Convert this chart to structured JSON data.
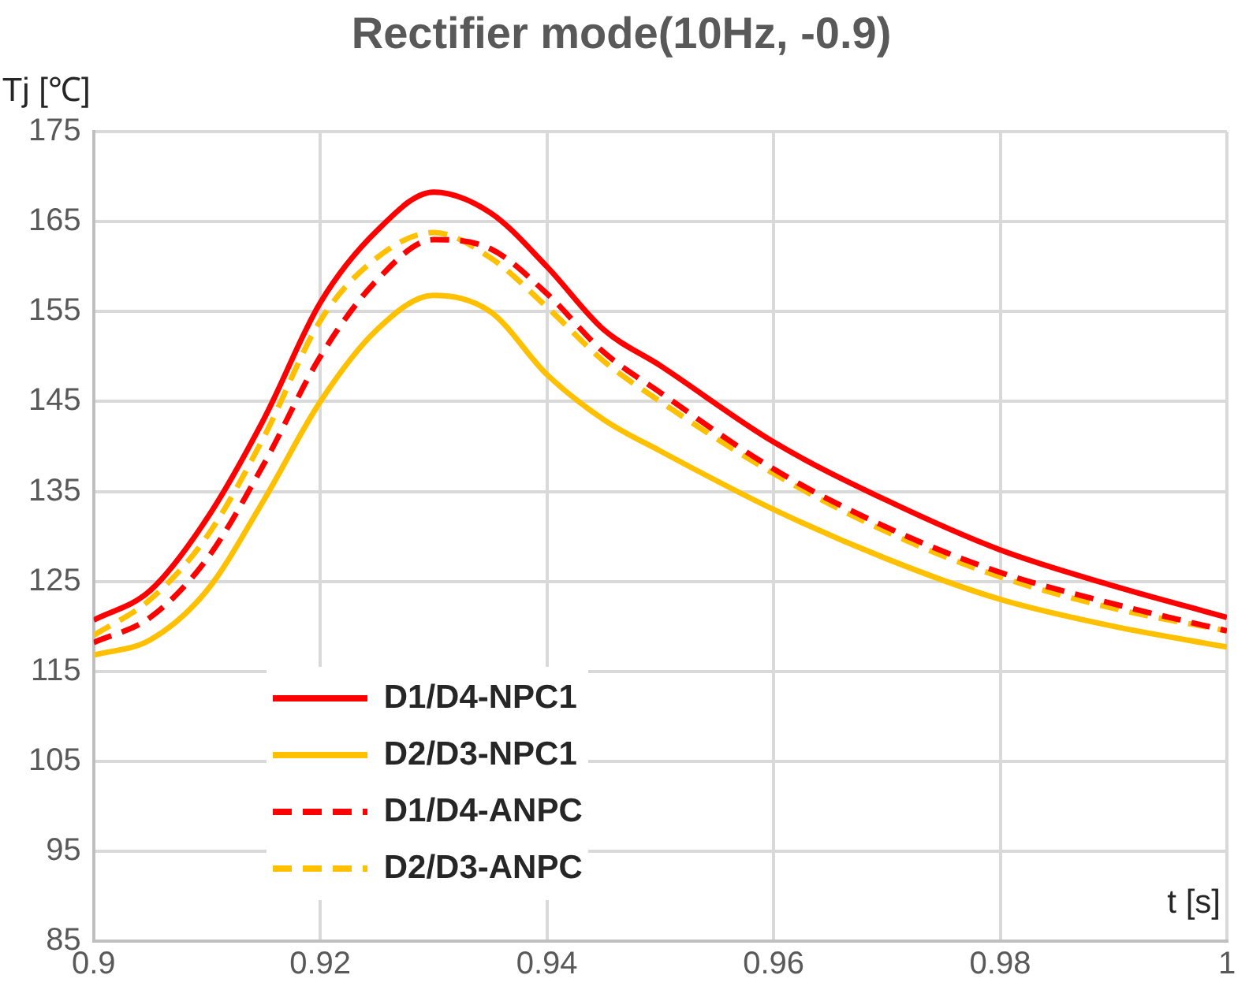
{
  "chart_data": {
    "type": "line",
    "title": "Rectifier mode(10Hz, -0.9)",
    "xlabel": "t [s]",
    "ylabel": "Tj [℃]",
    "x": [
      0.9,
      0.905,
      0.91,
      0.915,
      0.92,
      0.925,
      0.93,
      0.935,
      0.94,
      0.945,
      0.95,
      0.96,
      0.97,
      0.98,
      0.99,
      1.0
    ],
    "series": [
      {
        "name": "D1/D4-NPC1",
        "color": "#ff0000",
        "line_style": "solid",
        "values": [
          120.7,
          124,
          132,
          143,
          156,
          164,
          168.3,
          166,
          160,
          153,
          149,
          140.5,
          134,
          128.5,
          124.5,
          121
        ]
      },
      {
        "name": "D2/D3-NPC1",
        "color": "#ffc000",
        "line_style": "solid",
        "values": [
          116.8,
          118.5,
          124,
          134,
          145,
          153,
          156.8,
          155,
          148,
          143,
          139.5,
          133,
          127.5,
          123,
          120,
          117.7
        ]
      },
      {
        "name": "D1/D4-ANPC",
        "color": "#ff0000",
        "line_style": "dashed",
        "values": [
          118.2,
          121,
          127.5,
          138,
          150,
          158.5,
          163,
          162,
          157,
          150.5,
          146,
          137.5,
          131,
          126,
          122.5,
          119.5
        ]
      },
      {
        "name": "D2/D3-ANPC",
        "color": "#ffc000",
        "line_style": "dashed",
        "values": [
          119,
          123,
          130,
          141,
          154,
          161,
          163.8,
          161,
          155.5,
          149.5,
          145,
          137,
          130.5,
          125.5,
          122,
          119.5
        ]
      }
    ],
    "xlim": [
      0.9,
      1.0
    ],
    "xticks": [
      0.9,
      0.92,
      0.94,
      0.96,
      0.98,
      {
        "value": 1.0,
        "label": "1"
      }
    ],
    "ylim": [
      85,
      175
    ],
    "yticks": [
      85,
      95,
      105,
      115,
      125,
      135,
      145,
      155,
      165,
      175
    ],
    "grid": true,
    "legend": "bottom left",
    "marker": "none"
  }
}
